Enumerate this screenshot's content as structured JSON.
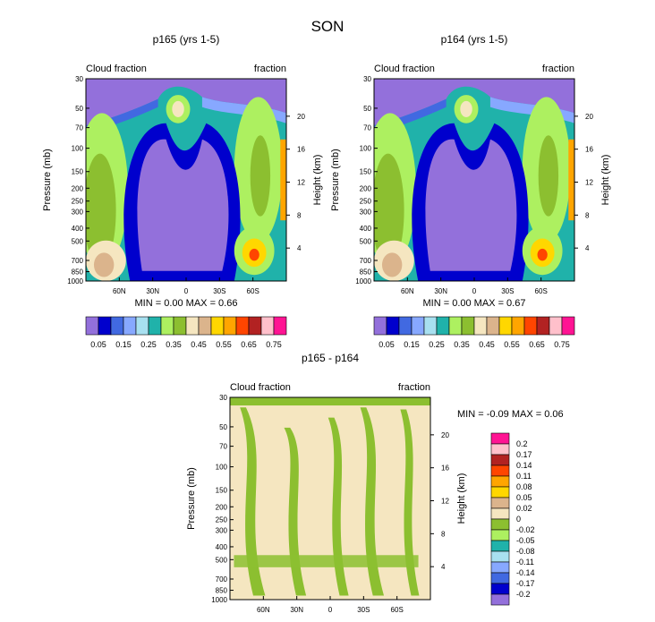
{
  "page_title": "SON",
  "chart_data": [
    {
      "type": "heatmap",
      "title": "p165 (yrs 1-5)",
      "subtitle_left": "Cloud fraction",
      "subtitle_right": "fraction",
      "xlabel": "",
      "ylabel": "Pressure (mb)",
      "ylabel_right": "Height (km)",
      "x_ticks": [
        "60N",
        "30N",
        "0",
        "30S",
        "60S"
      ],
      "x_tick_values": [
        60,
        30,
        0,
        -30,
        -60
      ],
      "xlim": [
        90,
        -90
      ],
      "y_ticks": [
        30,
        50,
        70,
        100,
        150,
        200,
        250,
        300,
        400,
        500,
        700,
        850,
        1000
      ],
      "ylim": [
        1000,
        30
      ],
      "y_scale": "log",
      "y_right_ticks": [
        20,
        16,
        12,
        8,
        4
      ],
      "stats": {
        "min_label": "MIN =",
        "min": "0.00",
        "max_label": "MAX =",
        "max": "0.66"
      },
      "colorbar": {
        "orientation": "horizontal",
        "labels": [
          "0.05",
          "0.15",
          "0.25",
          "0.35",
          "0.45",
          "0.55",
          "0.65",
          "0.75"
        ],
        "colors": [
          "#9370db",
          "#0000cd",
          "#4169e1",
          "#87a8ff",
          "#a8e0f0",
          "#20b2aa",
          "#adf060",
          "#8cbf30",
          "#f5e6c0",
          "#dbb48c",
          "#ffd700",
          "#ffa500",
          "#ff4500",
          "#b22222",
          "#ffc0cb",
          "#ff1493"
        ]
      }
    },
    {
      "type": "heatmap",
      "title": "p164 (yrs 1-5)",
      "subtitle_left": "Cloud fraction",
      "subtitle_right": "fraction",
      "xlabel": "",
      "ylabel": "Pressure (mb)",
      "ylabel_right": "Height (km)",
      "x_ticks": [
        "60N",
        "30N",
        "0",
        "30S",
        "60S"
      ],
      "x_tick_values": [
        60,
        30,
        0,
        -30,
        -60
      ],
      "xlim": [
        90,
        -90
      ],
      "y_ticks": [
        30,
        50,
        70,
        100,
        150,
        200,
        250,
        300,
        400,
        500,
        700,
        850,
        1000
      ],
      "ylim": [
        1000,
        30
      ],
      "y_scale": "log",
      "y_right_ticks": [
        20,
        16,
        12,
        8,
        4
      ],
      "stats": {
        "min_label": "MIN =",
        "min": "0.00",
        "max_label": "MAX =",
        "max": "0.67"
      },
      "colorbar": {
        "orientation": "horizontal",
        "labels": [
          "0.05",
          "0.15",
          "0.25",
          "0.35",
          "0.45",
          "0.55",
          "0.65",
          "0.75"
        ],
        "colors": [
          "#9370db",
          "#0000cd",
          "#4169e1",
          "#87a8ff",
          "#a8e0f0",
          "#20b2aa",
          "#adf060",
          "#8cbf30",
          "#f5e6c0",
          "#dbb48c",
          "#ffd700",
          "#ffa500",
          "#ff4500",
          "#b22222",
          "#ffc0cb",
          "#ff1493"
        ]
      }
    },
    {
      "type": "heatmap",
      "title": "p165 - p164",
      "subtitle_left": "Cloud fraction",
      "subtitle_right": "fraction",
      "xlabel": "",
      "ylabel": "Pressure (mb)",
      "ylabel_right": "Height (km)",
      "x_ticks": [
        "60N",
        "30N",
        "0",
        "30S",
        "60S"
      ],
      "x_tick_values": [
        60,
        30,
        0,
        -30,
        -60
      ],
      "xlim": [
        90,
        -90
      ],
      "y_ticks": [
        30,
        50,
        70,
        100,
        150,
        200,
        250,
        300,
        400,
        500,
        700,
        850,
        1000
      ],
      "ylim": [
        1000,
        30
      ],
      "y_scale": "log",
      "y_right_ticks": [
        20,
        16,
        12,
        8,
        4
      ],
      "stats": {
        "min_label": "MIN =",
        "min": "-0.09",
        "max_label": "MAX =",
        "max": "0.06"
      },
      "colorbar": {
        "orientation": "vertical",
        "labels": [
          "0.2",
          "0.17",
          "0.14",
          "0.11",
          "0.08",
          "0.05",
          "0.02",
          "0",
          "-0.02",
          "-0.05",
          "-0.08",
          "-0.11",
          "-0.14",
          "-0.17",
          "-0.2"
        ],
        "colors": [
          "#ff1493",
          "#ffc0cb",
          "#b22222",
          "#ff4500",
          "#ffa500",
          "#ffd700",
          "#dbb48c",
          "#f5e6c0",
          "#8cbf30",
          "#adf060",
          "#20b2aa",
          "#a8e0f0",
          "#87a8ff",
          "#4169e1",
          "#0000cd",
          "#9370db"
        ]
      }
    }
  ]
}
